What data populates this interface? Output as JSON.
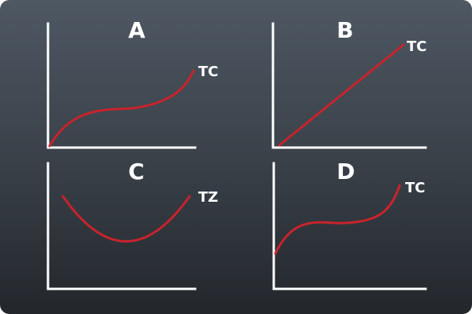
{
  "panels": [
    {
      "letter": "A",
      "curve_label": "TC",
      "curve_color": "#c8232c",
      "axis_color": "#ffffff"
    },
    {
      "letter": "B",
      "curve_label": "TC",
      "curve_color": "#c8232c",
      "axis_color": "#ffffff"
    },
    {
      "letter": "C",
      "curve_label": "TZ",
      "curve_color": "#c8232c",
      "axis_color": "#ffffff"
    },
    {
      "letter": "D",
      "curve_label": "TC",
      "curve_color": "#c8232c",
      "axis_color": "#ffffff"
    }
  ],
  "colors": {
    "background_top": "#4e5863",
    "background_bottom": "#23272c",
    "curve": "#c8232c",
    "axis": "#ffffff"
  }
}
